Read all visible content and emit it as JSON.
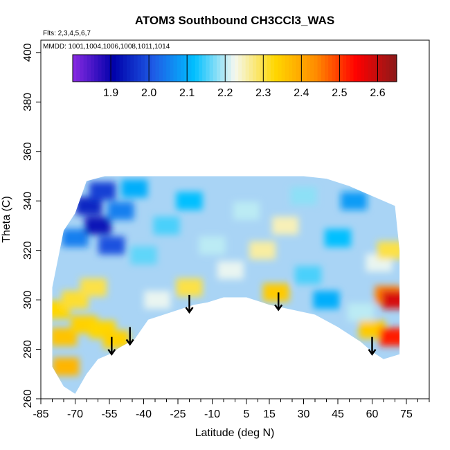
{
  "chart_data": {
    "type": "heatmap",
    "title": "ATOM3 Southbound CH3CCl3_WAS",
    "annotations": {
      "flights": "Flts: 2,3,4,5,6,7",
      "dates": "MMDD: 1001,1004,1006,1008,1011,1014"
    },
    "xlabel": "Latitude (deg N)",
    "ylabel": "Theta (C)",
    "xlim": [
      -85,
      85
    ],
    "ylim": [
      260,
      405
    ],
    "x_ticks": [
      -85,
      -70,
      -55,
      -40,
      -25,
      -10,
      5,
      15,
      30,
      45,
      60,
      75
    ],
    "x_minor_step": 5,
    "y_ticks": [
      260,
      280,
      300,
      320,
      340,
      360,
      380,
      400
    ],
    "colorbar": {
      "ticks": [
        1.9,
        2.0,
        2.1,
        2.2,
        2.3,
        2.4,
        2.5,
        2.6
      ],
      "range": [
        1.8,
        2.65
      ],
      "colors": [
        "#8a2be2",
        "#0000aa",
        "#1e5ce6",
        "#00bfff",
        "#f5f8f0",
        "#ffd700",
        "#ff8c00",
        "#ff0000",
        "#8b1a1a"
      ]
    },
    "top_boundary": [
      [
        -80,
        305
      ],
      [
        -75,
        328
      ],
      [
        -70,
        335
      ],
      [
        -65,
        348
      ],
      [
        -57,
        350
      ],
      [
        -50,
        350
      ],
      [
        -40,
        350
      ],
      [
        -30,
        350
      ],
      [
        -20,
        350
      ],
      [
        -10,
        350
      ],
      [
        0,
        350
      ],
      [
        10,
        350
      ],
      [
        20,
        350
      ],
      [
        30,
        350
      ],
      [
        40,
        349
      ],
      [
        50,
        346
      ],
      [
        60,
        342
      ],
      [
        65,
        340
      ],
      [
        70,
        338
      ],
      [
        72,
        320
      ]
    ],
    "bottom_boundary": [
      [
        72,
        278
      ],
      [
        65,
        276
      ],
      [
        60,
        279
      ],
      [
        55,
        283
      ],
      [
        45,
        289
      ],
      [
        35,
        294
      ],
      [
        25,
        296
      ],
      [
        15,
        298
      ],
      [
        5,
        301
      ],
      [
        -5,
        301
      ],
      [
        -12,
        299
      ],
      [
        -18,
        298
      ],
      [
        -28,
        295
      ],
      [
        -38,
        292
      ],
      [
        -44,
        284
      ],
      [
        -50,
        281
      ],
      [
        -55,
        278
      ],
      [
        -60,
        276
      ],
      [
        -65,
        270
      ],
      [
        -70,
        262
      ],
      [
        -75,
        265
      ],
      [
        -80,
        273
      ]
    ],
    "cells": [
      {
        "lat": -78,
        "theta": 296,
        "v": 2.33
      },
      {
        "lat": -75,
        "theta": 285,
        "v": 2.36
      },
      {
        "lat": -74,
        "theta": 273,
        "v": 2.38
      },
      {
        "lat": -70,
        "theta": 300,
        "v": 2.31
      },
      {
        "lat": -66,
        "theta": 290,
        "v": 2.34
      },
      {
        "lat": -62,
        "theta": 305,
        "v": 2.3
      },
      {
        "lat": -58,
        "theta": 288,
        "v": 2.33
      },
      {
        "lat": -52,
        "theta": 284,
        "v": 2.34
      },
      {
        "lat": -70,
        "theta": 325,
        "v": 2.05
      },
      {
        "lat": -64,
        "theta": 338,
        "v": 1.95
      },
      {
        "lat": -60,
        "theta": 330,
        "v": 1.93
      },
      {
        "lat": -58,
        "theta": 344,
        "v": 1.98
      },
      {
        "lat": -54,
        "theta": 322,
        "v": 2.0
      },
      {
        "lat": -50,
        "theta": 336,
        "v": 2.05
      },
      {
        "lat": -44,
        "theta": 345,
        "v": 2.1
      },
      {
        "lat": -40,
        "theta": 318,
        "v": 2.16
      },
      {
        "lat": -34,
        "theta": 300,
        "v": 2.22
      },
      {
        "lat": -30,
        "theta": 330,
        "v": 2.15
      },
      {
        "lat": -20,
        "theta": 340,
        "v": 2.12
      },
      {
        "lat": -20,
        "theta": 305,
        "v": 2.3
      },
      {
        "lat": -10,
        "theta": 322,
        "v": 2.2
      },
      {
        "lat": -2,
        "theta": 312,
        "v": 2.22
      },
      {
        "lat": 5,
        "theta": 336,
        "v": 2.2
      },
      {
        "lat": 12,
        "theta": 320,
        "v": 2.26
      },
      {
        "lat": 18,
        "theta": 303,
        "v": 2.35
      },
      {
        "lat": 22,
        "theta": 330,
        "v": 2.25
      },
      {
        "lat": 30,
        "theta": 342,
        "v": 2.18
      },
      {
        "lat": 32,
        "theta": 310,
        "v": 2.15
      },
      {
        "lat": 40,
        "theta": 300,
        "v": 2.1
      },
      {
        "lat": 45,
        "theta": 325,
        "v": 2.12
      },
      {
        "lat": 52,
        "theta": 340,
        "v": 2.08
      },
      {
        "lat": 55,
        "theta": 295,
        "v": 2.2
      },
      {
        "lat": 60,
        "theta": 288,
        "v": 2.35
      },
      {
        "lat": 63,
        "theta": 315,
        "v": 2.22
      },
      {
        "lat": 67,
        "theta": 302,
        "v": 2.45
      },
      {
        "lat": 70,
        "theta": 300,
        "v": 2.58
      },
      {
        "lat": 69,
        "theta": 285,
        "v": 2.52
      },
      {
        "lat": 68,
        "theta": 320,
        "v": 2.3
      }
    ],
    "arrows": [
      {
        "lat": -54,
        "theta": 285
      },
      {
        "lat": -46,
        "theta": 289
      },
      {
        "lat": -20,
        "theta": 302
      },
      {
        "lat": 19,
        "theta": 303
      },
      {
        "lat": 60,
        "theta": 285
      }
    ]
  }
}
